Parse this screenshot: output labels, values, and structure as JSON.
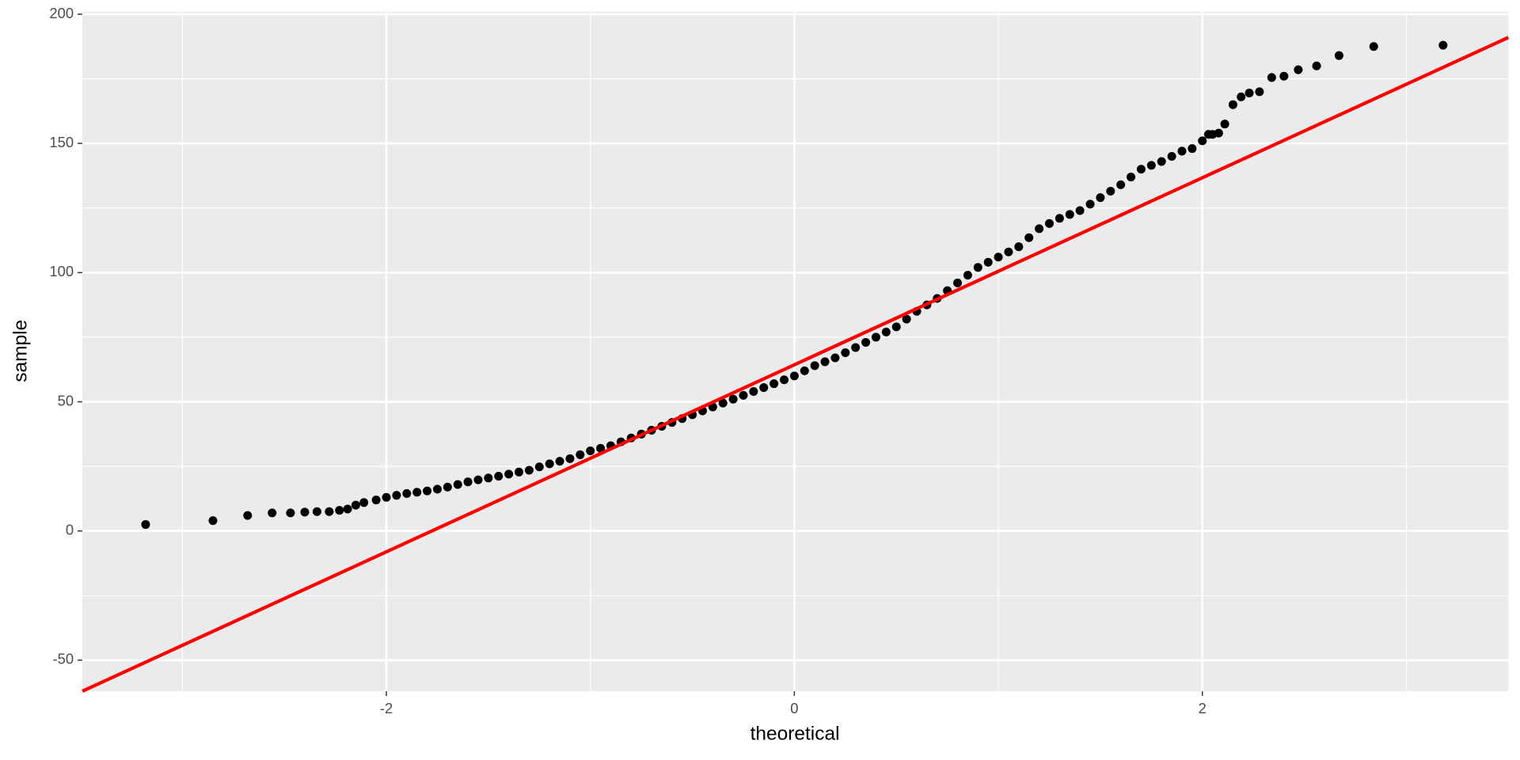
{
  "chart_data": {
    "type": "scatter",
    "x_label": "theoretical",
    "y_label": "sample",
    "color": "#000000",
    "x": [
      -3.18,
      -2.85,
      -2.68,
      -2.56,
      -2.47,
      -2.4,
      -2.34,
      -2.28,
      -2.23,
      -2.19,
      -2.15,
      -2.11,
      -2.05,
      -2.0,
      -1.95,
      -1.9,
      -1.85,
      -1.8,
      -1.75,
      -1.7,
      -1.65,
      -1.6,
      -1.55,
      -1.5,
      -1.45,
      -1.4,
      -1.35,
      -1.3,
      -1.25,
      -1.2,
      -1.15,
      -1.1,
      -1.05,
      -1.0,
      -0.95,
      -0.9,
      -0.85,
      -0.8,
      -0.75,
      -0.7,
      -0.65,
      -0.6,
      -0.55,
      -0.5,
      -0.45,
      -0.4,
      -0.35,
      -0.3,
      -0.25,
      -0.2,
      -0.15,
      -0.1,
      -0.05,
      0.0,
      0.05,
      0.1,
      0.15,
      0.2,
      0.25,
      0.3,
      0.35,
      0.4,
      0.45,
      0.5,
      0.55,
      0.6,
      0.65,
      0.7,
      0.75,
      0.8,
      0.85,
      0.9,
      0.95,
      1.0,
      1.05,
      1.1,
      1.15,
      1.2,
      1.25,
      1.3,
      1.35,
      1.4,
      1.45,
      1.5,
      1.55,
      1.6,
      1.65,
      1.7,
      1.75,
      1.8,
      1.85,
      1.9,
      1.95,
      2.0,
      2.03,
      2.05,
      2.08,
      2.11,
      2.15,
      2.19,
      2.23,
      2.28,
      2.34,
      2.4,
      2.47,
      2.56,
      2.67,
      2.84,
      3.18
    ],
    "values": [
      2.5,
      4,
      6,
      7,
      7,
      7.3,
      7.5,
      7.5,
      8,
      8.5,
      10,
      11,
      12,
      13,
      13.8,
      14.5,
      15,
      15.5,
      16.2,
      17,
      18,
      19,
      19.8,
      20.5,
      21.2,
      22,
      22.8,
      23.5,
      24.8,
      26,
      27,
      28,
      29.5,
      31,
      32,
      33,
      34.5,
      36,
      37.5,
      39,
      40.5,
      42,
      43.5,
      45,
      46.5,
      48,
      49.5,
      51,
      52.5,
      54,
      55.5,
      57,
      58.5,
      60,
      62,
      64,
      65.5,
      67,
      69,
      71,
      73,
      75,
      77,
      79,
      82,
      85,
      87.5,
      90,
      93,
      96,
      99,
      102,
      104,
      106,
      108,
      110,
      113.5,
      117,
      119,
      121,
      122.5,
      124,
      126.5,
      129,
      131.5,
      134,
      137,
      140,
      141.5,
      143,
      145,
      147,
      148,
      151,
      153.5,
      153.5,
      154,
      157.5,
      165,
      168,
      169.5,
      170,
      175.5,
      176,
      178.5,
      180,
      184,
      187.5,
      188
    ],
    "reference_line": {
      "x": [
        -3.49,
        3.5
      ],
      "y": [
        -62,
        191
      ],
      "color": "#ff0000"
    },
    "xlim": [
      -3.49,
      3.5
    ],
    "ylim": [
      -62,
      201
    ],
    "xticks": [
      -2,
      0,
      2
    ],
    "yticks": [
      -50,
      0,
      50,
      100,
      150,
      200
    ],
    "xminor": [
      -3,
      -1,
      1,
      3
    ],
    "yminor": [
      -25,
      25,
      75,
      125,
      175
    ],
    "grid": true
  }
}
